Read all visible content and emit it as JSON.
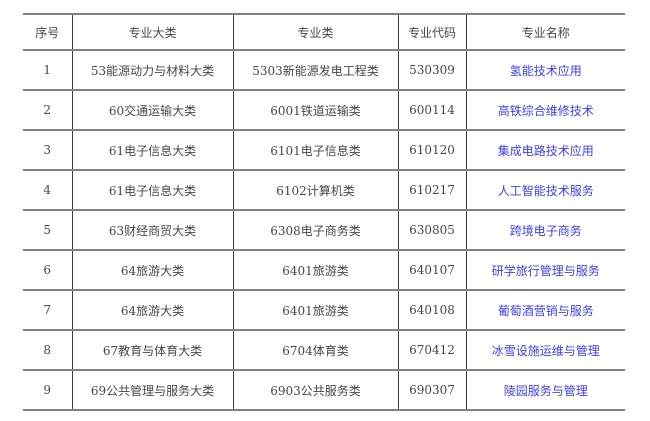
{
  "colors": {
    "link_text": "#3e3eef",
    "body_text": "#46464f",
    "horizontal_rule": "#828282",
    "vertical_rule": "#3a3a3a",
    "background": "#ffffff"
  },
  "table": {
    "headers": {
      "serial": "序号",
      "group": "专业大类",
      "class": "专业类",
      "code": "专业代码",
      "name": "专业名称"
    },
    "rows": [
      {
        "serial": "1",
        "group": "53能源动力与材料大类",
        "class": "5303新能源发电工程类",
        "code": "530309",
        "name": "氢能技术应用"
      },
      {
        "serial": "2",
        "group": "60交通运输大类",
        "class": "6001铁道运输类",
        "code": "600114",
        "name": "高铁综合维修技术"
      },
      {
        "serial": "3",
        "group": "61电子信息大类",
        "class": "6101电子信息类",
        "code": "610120",
        "name": "集成电路技术应用"
      },
      {
        "serial": "4",
        "group": "61电子信息大类",
        "class": "6102计算机类",
        "code": "610217",
        "name": "人工智能技术服务"
      },
      {
        "serial": "5",
        "group": "63财经商贸大类",
        "class": "6308电子商务类",
        "code": "630805",
        "name": "跨境电子商务"
      },
      {
        "serial": "6",
        "group": "64旅游大类",
        "class": "6401旅游类",
        "code": "640107",
        "name": "研学旅行管理与服务"
      },
      {
        "serial": "7",
        "group": "64旅游大类",
        "class": "6401旅游类",
        "code": "640108",
        "name": "葡萄酒营销与服务"
      },
      {
        "serial": "8",
        "group": "67教育与体育大类",
        "class": "6704体育类",
        "code": "670412",
        "name": "冰雪设施运维与管理"
      },
      {
        "serial": "9",
        "group": "69公共管理与服务大类",
        "class": "6903公共服务类",
        "code": "690307",
        "name": "陵园服务与管理"
      }
    ]
  }
}
